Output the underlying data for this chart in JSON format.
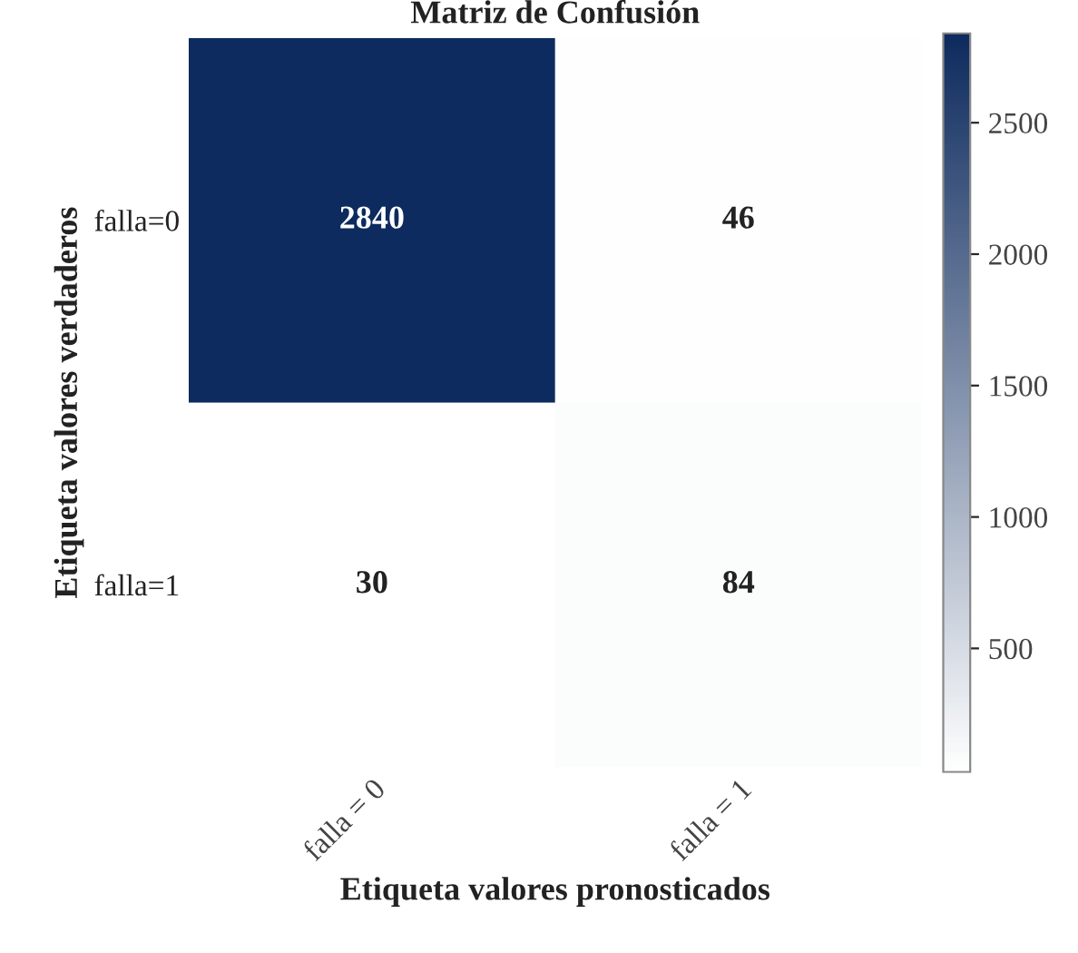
{
  "chart_data": {
    "type": "heatmap",
    "title": "Matriz de Confusión",
    "xlabel": "Etiqueta valores pronosticados",
    "ylabel": "Etiqueta valores verdaderos",
    "categories": [
      "falla = 0",
      "falla = 1"
    ],
    "y_categories": [
      "falla=0",
      "falla=1"
    ],
    "cells": [
      [
        2840,
        46
      ],
      [
        30,
        84
      ]
    ],
    "data_labels": true,
    "clim": [
      30,
      2840
    ],
    "cticks": [
      500,
      1000,
      1500,
      2000,
      2500
    ]
  }
}
